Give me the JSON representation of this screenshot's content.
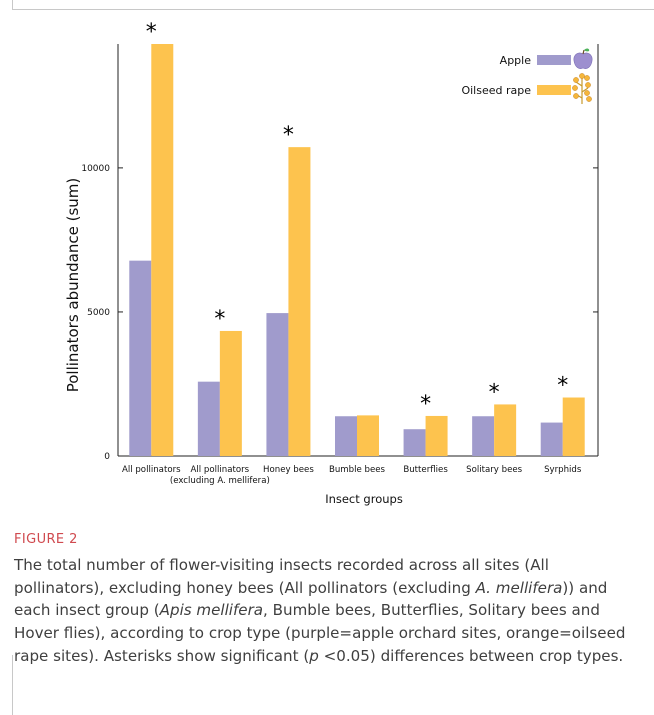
{
  "colors": {
    "apple": "#a09bcc",
    "oilseed": "#fdc34e",
    "axis": "#222222",
    "star": "#000000"
  },
  "chart_data": {
    "type": "bar",
    "categories": [
      [
        "All pollinators"
      ],
      [
        "All pollinators",
        "(excluding A. mellifera)"
      ],
      [
        "Honey bees"
      ],
      [
        "Bumble bees"
      ],
      [
        "Butterflies"
      ],
      [
        "Solitary bees"
      ],
      [
        "Syrphids"
      ]
    ],
    "series": [
      {
        "name": "Apple",
        "values": [
          6780,
          2580,
          4960,
          1380,
          930,
          1380,
          1160
        ],
        "color": "#a09bcc",
        "icon": "apple-icon"
      },
      {
        "name": "Oilseed rape",
        "values": [
          14300,
          4340,
          10720,
          1410,
          1390,
          1790,
          2030
        ],
        "color": "#fdc34e",
        "icon": "rapeseed-flower-icon"
      }
    ],
    "significance": [
      true,
      true,
      true,
      false,
      true,
      true,
      true
    ],
    "significance_marker": "*",
    "xlabel": "Insect groups",
    "ylabel": "Pollinators  abundance (sum)",
    "ylim": [
      0,
      14300
    ],
    "yticks": [
      0,
      5000,
      10000
    ],
    "legend_position": "top-right",
    "grid": false
  },
  "caption": {
    "label": "FIGURE 2",
    "text_parts": [
      {
        "t": "The total number of flower-visiting insects recorded across all sites (All pollinators), excluding honey bees (All pollinators (excluding ",
        "i": false
      },
      {
        "t": "A. mellifera",
        "i": true
      },
      {
        "t": ")) and each insect group (",
        "i": false
      },
      {
        "t": "Apis mellifera",
        "i": true
      },
      {
        "t": ", Bumble bees, Butterflies, Solitary bees and Hover flies), according to crop type (purple=apple orchard sites, orange=oilseed rape sites). Asterisks show significant (",
        "i": false
      },
      {
        "t": "p",
        "i": true
      },
      {
        "t": " <0.05) differences between crop types.",
        "i": false
      }
    ]
  }
}
